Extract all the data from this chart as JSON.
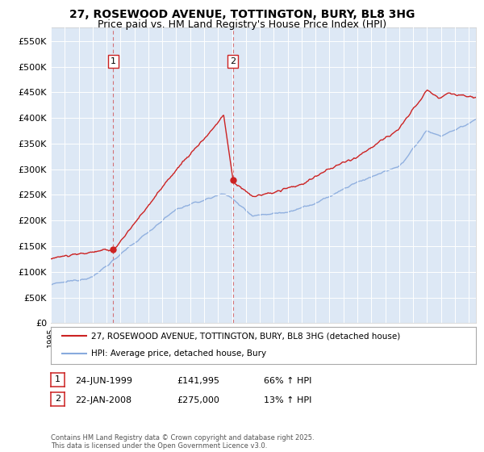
{
  "title_line1": "27, ROSEWOOD AVENUE, TOTTINGTON, BURY, BL8 3HG",
  "title_line2": "Price paid vs. HM Land Registry's House Price Index (HPI)",
  "plot_bg_color": "#dde8f5",
  "ylim": [
    0,
    577000
  ],
  "yticks": [
    0,
    50000,
    100000,
    150000,
    200000,
    250000,
    300000,
    350000,
    400000,
    450000,
    500000,
    550000
  ],
  "xlim_start": 1995.0,
  "xlim_end": 2025.5,
  "sale1_date": 1999.48,
  "sale1_price": 141995,
  "sale2_date": 2008.06,
  "sale2_price": 275000,
  "legend_label1": "27, ROSEWOOD AVENUE, TOTTINGTON, BURY, BL8 3HG (detached house)",
  "legend_label2": "HPI: Average price, detached house, Bury",
  "footer": "Contains HM Land Registry data © Crown copyright and database right 2025.\nThis data is licensed under the Open Government Licence v3.0.",
  "red_color": "#cc2222",
  "blue_color": "#88aadd",
  "dashed_red": "#cc2222",
  "title_fontsize": 10,
  "subtitle_fontsize": 9
}
